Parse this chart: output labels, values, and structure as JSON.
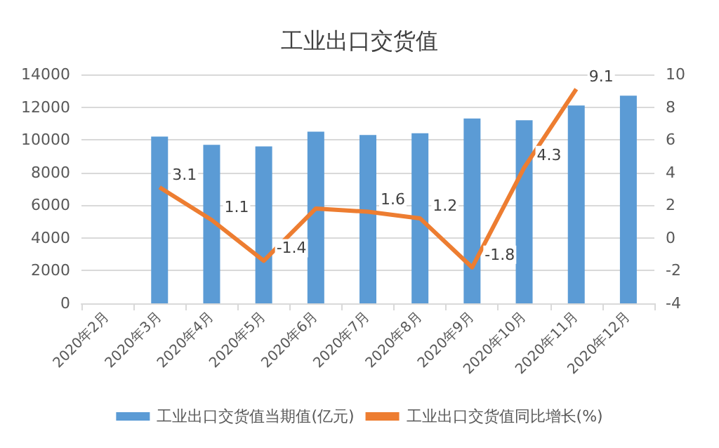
{
  "chart_data": {
    "type": "bar",
    "title": "工业出口交货值",
    "categories": [
      "2020年2月",
      "2020年3月",
      "2020年4月",
      "2020年5月",
      "2020年6月",
      "2020年7月",
      "2020年8月",
      "2020年9月",
      "2020年10月",
      "2020年11月",
      "2020年12月"
    ],
    "series": [
      {
        "name": "工业出口交货值当期值(亿元)",
        "color": "#5b9bd5",
        "values": [
          null,
          10200,
          9700,
          9600,
          10500,
          10300,
          10400,
          11300,
          11200,
          12100,
          12700
        ]
      },
      {
        "name": "工业出口交货值同比增长(%)",
        "type": "line",
        "axis": "y2",
        "color": "#ed7d31",
        "values": [
          null,
          3.1,
          1.1,
          -1.4,
          1.8,
          1.6,
          1.2,
          -1.8,
          4.3,
          9.1,
          null
        ],
        "value_labels": [
          null,
          "3.1",
          "1.1",
          "-1.4",
          null,
          "1.6",
          "1.2",
          "-1.8",
          "4.3",
          "9.1",
          null
        ]
      }
    ],
    "ylim": [
      0,
      14000
    ],
    "yticks": [
      0,
      2000,
      4000,
      6000,
      8000,
      10000,
      12000,
      14000
    ],
    "y2lim": [
      -4,
      10
    ],
    "y2ticks": [
      -4,
      -2,
      0,
      2,
      4,
      6,
      8,
      10
    ],
    "grid": "y",
    "legend": "bottom",
    "marker": "none"
  }
}
